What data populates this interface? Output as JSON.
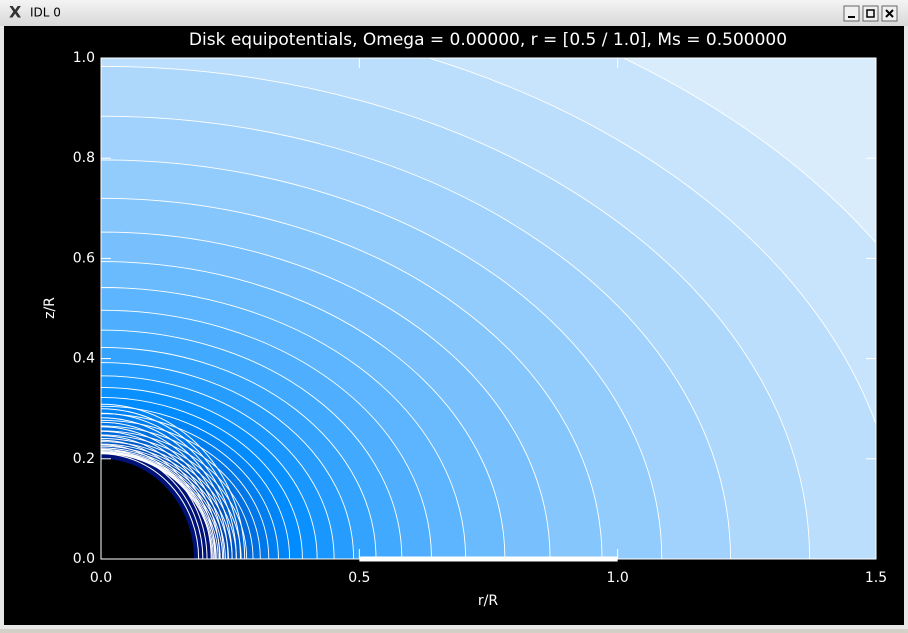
{
  "window": {
    "title": "IDL 0"
  },
  "chart_data": {
    "type": "contour",
    "title": "Disk equipotentials, Omega =  0.00000, r = [0.5 / 1.0], Ms =  0.500000",
    "xlabel": "r/R",
    "ylabel": "z/R",
    "xlim": [
      0,
      1.5
    ],
    "ylim": [
      0,
      1.0
    ],
    "xticks": [
      {
        "value": 0,
        "label": "0.0"
      },
      {
        "value": 0.5,
        "label": "0.5"
      },
      {
        "value": 1.0,
        "label": "1.0"
      },
      {
        "value": 1.5,
        "label": "1.5"
      }
    ],
    "yticks": [
      {
        "value": 0,
        "label": "0.0"
      },
      {
        "value": 0.2,
        "label": "0.2"
      },
      {
        "value": 0.4,
        "label": "0.4"
      },
      {
        "value": 0.6,
        "label": "0.6"
      },
      {
        "value": 0.8,
        "label": "0.8"
      },
      {
        "value": 1.0,
        "label": "1.0"
      }
    ],
    "disk": [
      0.5,
      1.0
    ]
  }
}
